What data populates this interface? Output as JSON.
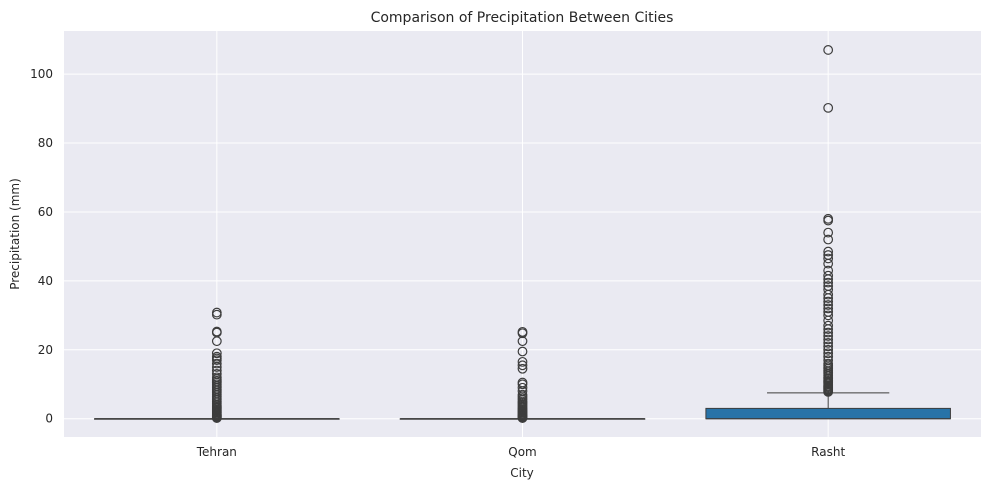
{
  "chart_data": {
    "type": "box",
    "title": "Comparison of Precipitation Between Cities",
    "xlabel": "City",
    "ylabel": "Precipitation (mm)",
    "ylim": [
      -5.3,
      112.5
    ],
    "yticks": [
      0,
      20,
      40,
      60,
      80,
      100
    ],
    "grid": true,
    "categories": [
      "Tehran",
      "Qom",
      "Rasht"
    ],
    "box_color": "#2873A8",
    "plot_bg": "#EAEAF2",
    "boxes": [
      {
        "name": "Tehran",
        "q1": 0,
        "median": 0,
        "q3": 0,
        "whisker_low": 0,
        "whisker_high": 0,
        "outliers": [
          0.2,
          0.4,
          0.6,
          0.8,
          1.0,
          1.2,
          1.5,
          1.8,
          2.0,
          2.3,
          2.6,
          3.0,
          3.3,
          3.6,
          4.0,
          4.5,
          5.0,
          5.5,
          6.0,
          6.5,
          7.0,
          7.5,
          8.0,
          8.5,
          9.0,
          9.5,
          10.0,
          10.5,
          11.0,
          11.5,
          12.0,
          13.0,
          14.0,
          15.0,
          16.0,
          17.0,
          17.5,
          18.0,
          19.0,
          22.5,
          25.0,
          25.3,
          30.2,
          30.8
        ]
      },
      {
        "name": "Qom",
        "q1": 0,
        "median": 0,
        "q3": 0,
        "whisker_low": 0,
        "whisker_high": 0,
        "outliers": [
          0.2,
          0.4,
          0.6,
          0.8,
          1.0,
          1.2,
          1.5,
          1.8,
          2.0,
          2.3,
          2.6,
          3.0,
          3.4,
          3.8,
          4.2,
          4.6,
          5.0,
          5.5,
          6.0,
          6.5,
          7.0,
          8.0,
          9.0,
          10.0,
          10.5,
          14.5,
          15.5,
          16.5,
          19.5,
          22.5,
          24.8,
          25.2
        ]
      },
      {
        "name": "Rasht",
        "q1": 0,
        "median": 0,
        "q3": 3.0,
        "whisker_low": 0,
        "whisker_high": 7.5,
        "outliers": [
          7.8,
          8.1,
          8.4,
          8.7,
          9.0,
          9.3,
          9.6,
          10.0,
          10.4,
          10.8,
          11.2,
          11.6,
          12.0,
          12.5,
          13.0,
          13.5,
          14.0,
          14.5,
          15.0,
          15.5,
          16.0,
          17.0,
          18.0,
          19.0,
          20.0,
          21.0,
          22.0,
          23.0,
          24.0,
          25.0,
          26.0,
          27.0,
          28.5,
          30.0,
          31.0,
          32.0,
          33.0,
          34.0,
          35.0,
          36.0,
          37.5,
          38.5,
          39.5,
          40.5,
          41.5,
          43.0,
          45.0,
          46.5,
          47.5,
          48.5,
          52.0,
          54.0,
          57.5,
          58.0,
          90.2,
          107.0
        ]
      }
    ]
  }
}
